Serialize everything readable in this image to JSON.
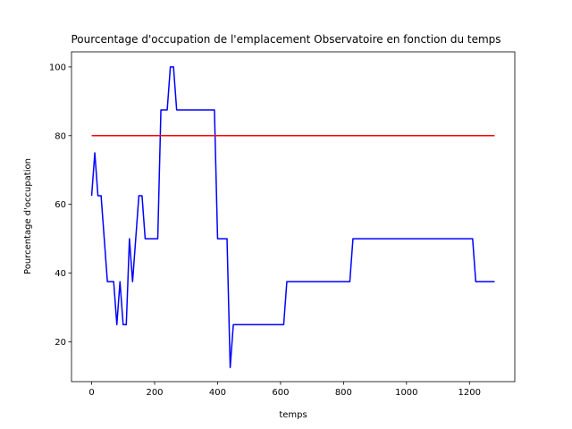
{
  "chart_data": {
    "type": "line",
    "title": "Pourcentage d'occupation de l'emplacement Observatoire en fonction du temps",
    "xlabel": "temps",
    "ylabel": "Pourcentage d'occupation",
    "xlim": [
      -64,
      1344
    ],
    "ylim": [
      8.4,
      104.4
    ],
    "xticks": [
      0,
      200,
      400,
      600,
      800,
      1000,
      1200
    ],
    "yticks": [
      20,
      40,
      60,
      80,
      100
    ],
    "grid": false,
    "series": [
      {
        "color": "#0000ff",
        "x": [
          0,
          10,
          20,
          30,
          40,
          50,
          60,
          70,
          80,
          90,
          100,
          110,
          120,
          130,
          140,
          150,
          160,
          170,
          180,
          190,
          200,
          210,
          220,
          230,
          240,
          250,
          260,
          270,
          280,
          290,
          300,
          310,
          320,
          330,
          340,
          350,
          360,
          370,
          380,
          390,
          400,
          410,
          420,
          430,
          440,
          450,
          460,
          470,
          480,
          490,
          500,
          510,
          520,
          530,
          540,
          550,
          560,
          570,
          580,
          590,
          600,
          610,
          620,
          630,
          640,
          650,
          660,
          670,
          680,
          690,
          700,
          710,
          720,
          730,
          740,
          750,
          760,
          770,
          780,
          790,
          800,
          810,
          820,
          830,
          840,
          850,
          860,
          870,
          880,
          890,
          900,
          910,
          920,
          930,
          940,
          950,
          960,
          970,
          980,
          990,
          1000,
          1010,
          1020,
          1030,
          1040,
          1050,
          1060,
          1070,
          1080,
          1090,
          1100,
          1110,
          1120,
          1130,
          1140,
          1150,
          1160,
          1170,
          1180,
          1190,
          1200,
          1210,
          1220,
          1230,
          1240,
          1250,
          1260,
          1270,
          1280
        ],
        "y": [
          62.5,
          75,
          62.5,
          62.5,
          50,
          37.5,
          37.5,
          37.5,
          25,
          37.5,
          25,
          25,
          50,
          37.5,
          50,
          62.5,
          62.5,
          50,
          50,
          50,
          50,
          50,
          87.5,
          87.5,
          87.5,
          100,
          100,
          87.5,
          87.5,
          87.5,
          87.5,
          87.5,
          87.5,
          87.5,
          87.5,
          87.5,
          87.5,
          87.5,
          87.5,
          87.5,
          50,
          50,
          50,
          50,
          12.5,
          25,
          25,
          25,
          25,
          25,
          25,
          25,
          25,
          25,
          25,
          25,
          25,
          25,
          25,
          25,
          25,
          25,
          37.5,
          37.5,
          37.5,
          37.5,
          37.5,
          37.5,
          37.5,
          37.5,
          37.5,
          37.5,
          37.5,
          37.5,
          37.5,
          37.5,
          37.5,
          37.5,
          37.5,
          37.5,
          37.5,
          37.5,
          37.5,
          50,
          50,
          50,
          50,
          50,
          50,
          50,
          50,
          50,
          50,
          50,
          50,
          50,
          50,
          50,
          50,
          50,
          50,
          50,
          50,
          50,
          50,
          50,
          50,
          50,
          50,
          50,
          50,
          50,
          50,
          50,
          50,
          50,
          50,
          50,
          50,
          50,
          50,
          50,
          37.5,
          37.5,
          37.5,
          37.5,
          37.5,
          37.5,
          37.5
        ]
      },
      {
        "color": "#ff0000",
        "x": [
          0,
          1280
        ],
        "y": [
          80,
          80
        ]
      }
    ]
  }
}
